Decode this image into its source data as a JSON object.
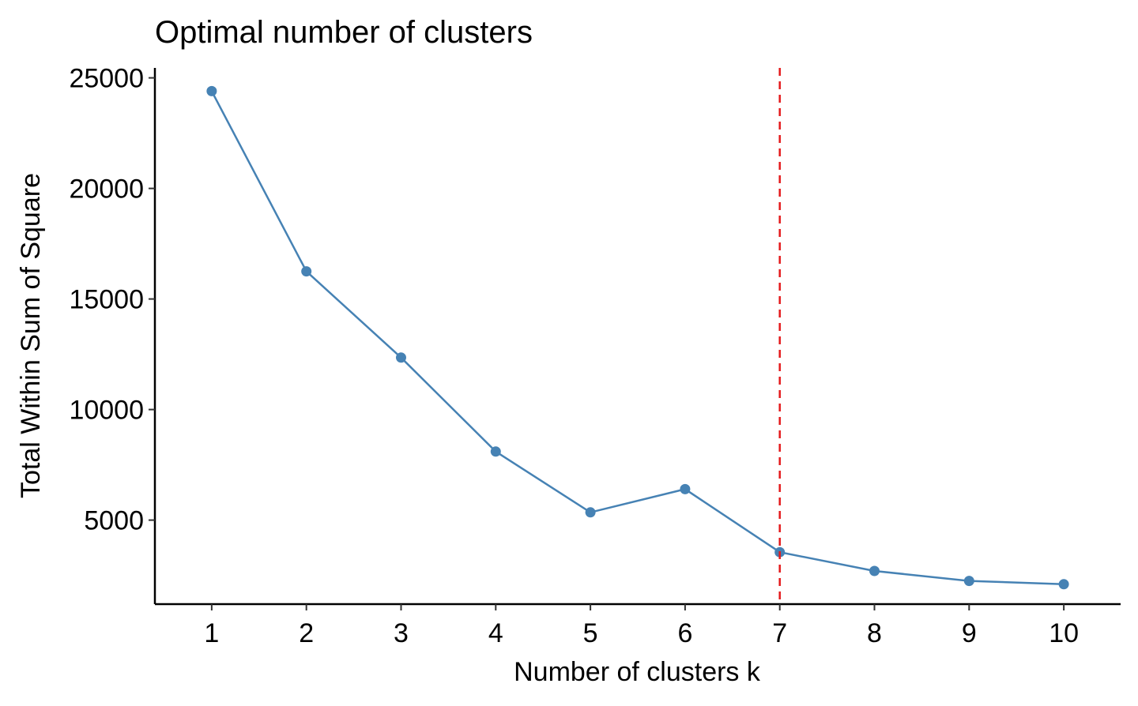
{
  "chart_data": {
    "type": "line",
    "title": "Optimal number of clusters",
    "xlabel": "Number of clusters k",
    "ylabel": "Total Within Sum of Square",
    "x": [
      1,
      2,
      3,
      4,
      5,
      6,
      7,
      8,
      9,
      10
    ],
    "x_ticks": [
      "1",
      "2",
      "3",
      "4",
      "5",
      "6",
      "7",
      "8",
      "9",
      "10"
    ],
    "y_ticks": [
      5000,
      10000,
      15000,
      20000,
      25000
    ],
    "series": [
      {
        "values": [
          24400,
          16250,
          12350,
          8100,
          5350,
          6400,
          3550,
          2700,
          2250,
          2100
        ],
        "color": "#4682B4"
      }
    ],
    "xlim": [
      0.4,
      10.6
    ],
    "ylim": [
      1200,
      25450
    ],
    "grid": false,
    "legend": "none",
    "reference_line": {
      "orientation": "vertical",
      "x": 7,
      "style": "dashed",
      "color": "#E41A1C"
    }
  }
}
